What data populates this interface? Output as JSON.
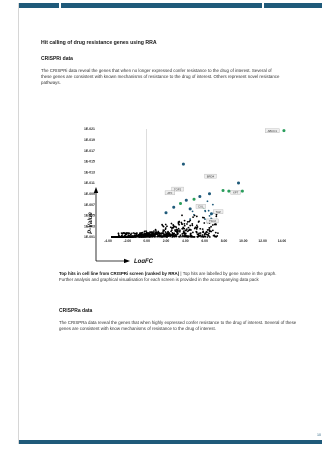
{
  "doc": {
    "title": "Hit calling of drug resistance genes using RRA",
    "crispri_heading": "CRISPRi data",
    "crispri_text": "The CRISPRi data reveal the genes that when no longer expressed confer resistance to the drug of interest. Several of these genes are consistent with known mechanisms of resistance to the drug of interest. Others represent novel resistance pathways.",
    "caption_bold": "Top hits in cell line from CRISPRi screen (ranked by RRA)",
    "caption_rest": " | Top hits are labelled by gene name in the graph. Further analysis and graphical visualisation for each screen is provided in the accompanying data pack",
    "crispra_heading": "CRISPRa data",
    "crispra_text": "The CRISPRa data reveal the genes that when highly expressed confer resistance to the drug of interest. Several of these genes are consistent with know mechanisms of resistance to the drug of interest.",
    "page_number": "10"
  },
  "chart_data": {
    "type": "scatter",
    "xlabel": "LogFC",
    "ylabel": "P-Value",
    "x_ticks": [
      "-4.00",
      "-2.00",
      "0.00",
      "2.00",
      "4.00",
      "6.00",
      "8.00",
      "10.00",
      "12.00",
      "14.00"
    ],
    "y_ticks": [
      "1E-001",
      "1E-003",
      "1E-005",
      "1E-007",
      "1E-009",
      "1E-011",
      "1E-013",
      "1E-015",
      "1E-017",
      "1E-019",
      "1E-021"
    ],
    "xlim": [
      -4,
      14
    ],
    "ylim": [
      0,
      20
    ],
    "colors": {
      "low": "#000000",
      "mid": "#1f5a7a",
      "high": "#2a9d5c"
    },
    "labelled_points": [
      {
        "label": "ABCC1",
        "x": 13.0,
        "y": 19.6
      },
      {
        "label": "BRD4",
        "x": 6.6,
        "y": 11.2
      },
      {
        "label": "TOP2",
        "x": 3.2,
        "y": 8.8
      },
      {
        "label": "ATF",
        "x": 2.4,
        "y": 8.1
      },
      {
        "label": "XPT",
        "x": 9.2,
        "y": 8.2
      },
      {
        "label": "CUL",
        "x": 5.6,
        "y": 5.6
      },
      {
        "label": "TAZ",
        "x": 7.4,
        "y": 4.6
      },
      {
        "label": "TSC2",
        "x": 6.8,
        "y": 2.9
      }
    ],
    "highlight_points": [
      {
        "x": 14.2,
        "y": 19.7,
        "c": "high"
      },
      {
        "x": 3.8,
        "y": 13.5,
        "c": "mid"
      },
      {
        "x": 9.5,
        "y": 10.0,
        "c": "mid"
      },
      {
        "x": 9.9,
        "y": 8.5,
        "c": "high"
      },
      {
        "x": 8.5,
        "y": 8.5,
        "c": "high"
      },
      {
        "x": 7.9,
        "y": 8.6,
        "c": "high"
      },
      {
        "x": 6.5,
        "y": 8.0,
        "c": "mid"
      },
      {
        "x": 5.5,
        "y": 7.5,
        "c": "mid"
      },
      {
        "x": 4.9,
        "y": 7.0,
        "c": "high"
      },
      {
        "x": 4.1,
        "y": 6.8,
        "c": "mid"
      },
      {
        "x": 3.5,
        "y": 6.2,
        "c": "high"
      },
      {
        "x": 5.9,
        "y": 5.5,
        "c": "high"
      },
      {
        "x": 4.5,
        "y": 5.2,
        "c": "mid"
      },
      {
        "x": 2.8,
        "y": 5.5,
        "c": "mid"
      },
      {
        "x": 2.0,
        "y": 4.5,
        "c": "mid"
      },
      {
        "x": 6.7,
        "y": 4.3,
        "c": "mid"
      }
    ]
  }
}
